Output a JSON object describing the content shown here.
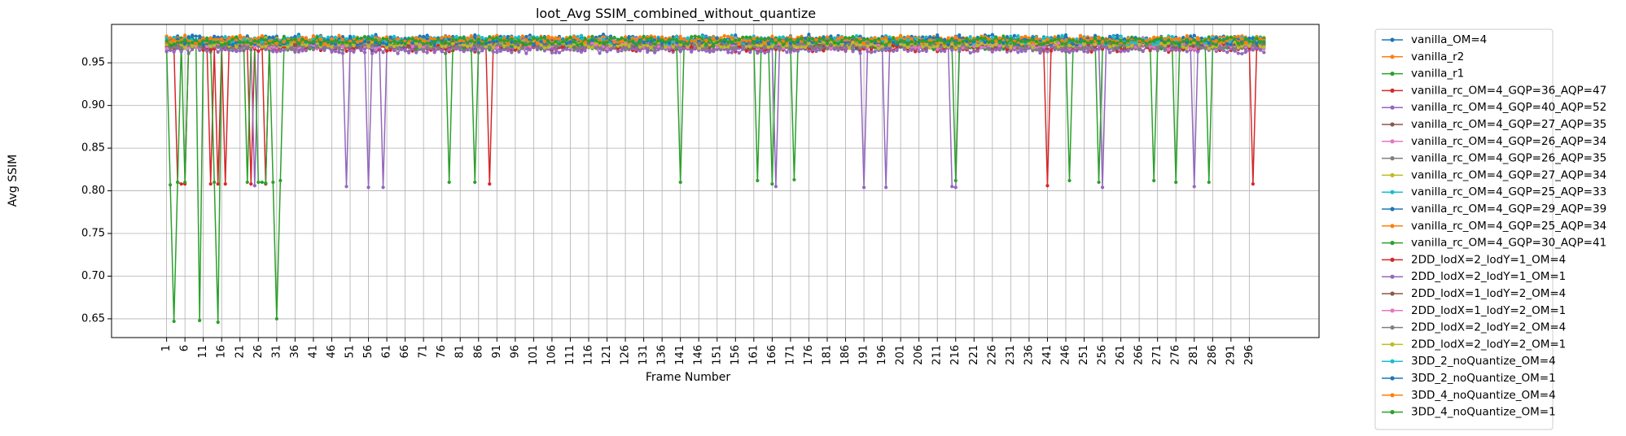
{
  "chart_data": {
    "type": "line",
    "title": "loot_Avg SSIM_combined_without_quantize",
    "xlabel": "Frame Number",
    "ylabel": "Avg SSIM",
    "xlim": [
      -14,
      315
    ],
    "ylim": [
      0.628,
      0.995
    ],
    "x_ticks": [
      1,
      6,
      11,
      16,
      21,
      26,
      31,
      36,
      41,
      46,
      51,
      56,
      61,
      66,
      71,
      76,
      81,
      86,
      91,
      96,
      101,
      106,
      111,
      116,
      121,
      126,
      131,
      136,
      141,
      146,
      151,
      156,
      161,
      166,
      171,
      176,
      181,
      186,
      191,
      196,
      201,
      206,
      211,
      216,
      221,
      226,
      231,
      236,
      241,
      246,
      251,
      256,
      261,
      266,
      271,
      276,
      281,
      286,
      291,
      296
    ],
    "y_ticks": [
      0.65,
      0.7,
      0.75,
      0.8,
      0.85,
      0.9,
      0.95
    ],
    "grid": true,
    "legend_position": "outside-right",
    "frames": {
      "start": 1,
      "end": 300
    },
    "series": [
      {
        "name": "vanilla_OM=4",
        "color": "#1f77b4",
        "base": 0.978,
        "dips": []
      },
      {
        "name": "vanilla_r2",
        "color": "#ff7f0e",
        "base": 0.976,
        "dips": []
      },
      {
        "name": "vanilla_r1",
        "color": "#2ca02c",
        "base": 0.975,
        "dips": []
      },
      {
        "name": "vanilla_rc_OM=4_GQP=36_AQP=47",
        "color": "#d62728",
        "base": 0.968,
        "dips": [
          [
            4,
            0.81
          ],
          [
            5,
            0.808
          ],
          [
            6,
            0.808
          ],
          [
            13,
            0.808
          ],
          [
            15,
            0.808
          ],
          [
            17,
            0.808
          ],
          [
            24,
            0.808
          ],
          [
            28,
            0.808
          ],
          [
            89,
            0.808
          ],
          [
            241,
            0.806
          ],
          [
            297,
            0.808
          ]
        ]
      },
      {
        "name": "vanilla_rc_OM=4_GQP=40_AQP=52",
        "color": "#9467bd",
        "base": 0.966,
        "dips": [
          [
            25,
            0.806
          ],
          [
            50,
            0.805
          ],
          [
            56,
            0.804
          ],
          [
            60,
            0.804
          ],
          [
            167,
            0.805
          ],
          [
            191,
            0.804
          ],
          [
            197,
            0.804
          ],
          [
            215,
            0.805
          ],
          [
            216,
            0.804
          ],
          [
            256,
            0.804
          ],
          [
            281,
            0.805
          ]
        ]
      },
      {
        "name": "vanilla_rc_OM=4_GQP=27_AQP=35",
        "color": "#8c564b",
        "base": 0.972,
        "dips": []
      },
      {
        "name": "vanilla_rc_OM=4_GQP=26_AQP=34",
        "color": "#e377c2",
        "base": 0.974,
        "dips": []
      },
      {
        "name": "vanilla_rc_OM=4_GQP=26_AQP=35",
        "color": "#7f7f7f",
        "base": 0.973,
        "dips": []
      },
      {
        "name": "vanilla_rc_OM=4_GQP=27_AQP=34",
        "color": "#bcbd22",
        "base": 0.974,
        "dips": []
      },
      {
        "name": "vanilla_rc_OM=4_GQP=25_AQP=33",
        "color": "#17becf",
        "base": 0.975,
        "dips": []
      },
      {
        "name": "vanilla_rc_OM=4_GQP=29_AQP=39",
        "color": "#1f77b4",
        "base": 0.971,
        "dips": []
      },
      {
        "name": "vanilla_rc_OM=4_GQP=25_AQP=34",
        "color": "#ff7f0e",
        "base": 0.975,
        "dips": []
      },
      {
        "name": "vanilla_rc_OM=4_GQP=30_AQP=41",
        "color": "#2ca02c",
        "base": 0.97,
        "dips": [
          [
            2,
            0.807
          ],
          [
            3,
            0.647
          ],
          [
            4,
            0.81
          ],
          [
            6,
            0.81
          ],
          [
            10,
            0.648
          ],
          [
            14,
            0.81
          ],
          [
            15,
            0.646
          ],
          [
            23,
            0.81
          ],
          [
            26,
            0.81
          ],
          [
            27,
            0.81
          ],
          [
            28,
            0.809
          ],
          [
            30,
            0.81
          ],
          [
            31,
            0.65
          ],
          [
            32,
            0.812
          ],
          [
            78,
            0.81
          ],
          [
            85,
            0.81
          ],
          [
            141,
            0.81
          ],
          [
            162,
            0.812
          ],
          [
            166,
            0.808
          ],
          [
            172,
            0.813
          ],
          [
            216,
            0.812
          ],
          [
            247,
            0.812
          ],
          [
            255,
            0.81
          ],
          [
            270,
            0.812
          ],
          [
            276,
            0.81
          ],
          [
            285,
            0.81
          ]
        ]
      },
      {
        "name": "2DD_lodX=2_lodY=1_OM=4",
        "color": "#d62728",
        "base": 0.969,
        "dips": []
      },
      {
        "name": "2DD_lodX=2_lodY=1_OM=1",
        "color": "#9467bd",
        "base": 0.967,
        "dips": []
      },
      {
        "name": "2DD_lodX=1_lodY=2_OM=4",
        "color": "#8c564b",
        "base": 0.972,
        "dips": []
      },
      {
        "name": "2DD_lodX=1_lodY=2_OM=1",
        "color": "#e377c2",
        "base": 0.971,
        "dips": []
      },
      {
        "name": "2DD_lodX=2_lodY=2_OM=4",
        "color": "#7f7f7f",
        "base": 0.97,
        "dips": []
      },
      {
        "name": "2DD_lodX=2_lodY=2_OM=1",
        "color": "#bcbd22",
        "base": 0.972,
        "dips": []
      },
      {
        "name": "3DD_2_noQuantize_OM=4",
        "color": "#17becf",
        "base": 0.977,
        "dips": []
      },
      {
        "name": "3DD_2_noQuantize_OM=1",
        "color": "#1f77b4",
        "base": 0.976,
        "dips": []
      },
      {
        "name": "3DD_4_noQuantize_OM=4",
        "color": "#ff7f0e",
        "base": 0.977,
        "dips": []
      },
      {
        "name": "3DD_4_noQuantize_OM=1",
        "color": "#2ca02c",
        "base": 0.976,
        "dips": []
      }
    ]
  }
}
